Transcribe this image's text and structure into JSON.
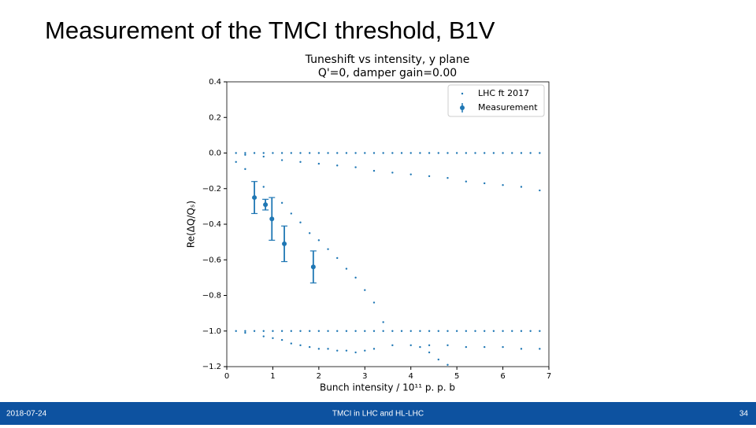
{
  "slide": {
    "title": "Measurement of the TMCI threshold, B1V",
    "date": "2018-07-24",
    "footer": "TMCI in LHC and HL-LHC",
    "page": "34"
  },
  "chart_data": {
    "type": "scatter",
    "title": "Tuneshift vs intensity, y plane",
    "subtitle": "Q'=0, damper gain=0.00",
    "x_label": "Bunch intensity / 10¹¹ p. p. b",
    "y_label": "Re(ΔQ/Qₛ)",
    "xlim": [
      0,
      7
    ],
    "xticks": [
      0,
      1,
      2,
      3,
      4,
      5,
      6,
      7
    ],
    "ylim": [
      -1.2,
      0.4
    ],
    "yticks": [
      {
        "value": -1.2,
        "label": "−1.2"
      },
      {
        "value": -1.0,
        "label": "−1.0"
      },
      {
        "value": -0.8,
        "label": "−0.8"
      },
      {
        "value": -0.6,
        "label": "−0.6"
      },
      {
        "value": -0.4,
        "label": "−0.4"
      },
      {
        "value": -0.2,
        "label": "−0.2"
      },
      {
        "value": 0,
        "label": "0.0"
      },
      0.2,
      0.4
    ],
    "legend": "upper right",
    "series": [
      {
        "name": "LHC ft 2017",
        "color": "#1f77b4",
        "x": [
          0.2,
          0.4,
          0.6,
          0.8,
          1.0,
          1.2,
          1.4,
          1.6,
          1.8,
          2.0,
          2.2,
          2.4,
          2.6,
          2.8,
          3.0,
          3.2,
          3.4,
          3.6,
          3.8,
          4.0,
          4.2,
          4.4,
          4.6,
          4.8,
          5.0,
          5.2,
          5.4,
          5.6,
          5.8,
          6.0,
          6.2,
          6.4,
          6.6,
          6.8,
          0.2,
          0.4,
          0.6,
          0.8,
          1.0,
          1.2,
          1.4,
          1.6,
          1.8,
          2.0,
          2.2,
          2.4,
          2.6,
          2.8,
          3.0,
          3.2,
          3.4,
          3.6,
          3.8,
          4.0,
          4.2,
          4.4,
          4.6,
          4.8,
          5.0,
          5.2,
          5.4,
          5.6,
          5.8,
          6.0,
          6.2,
          6.4,
          6.6,
          6.8,
          0.4,
          0.8,
          1.2,
          1.6,
          2.0,
          2.4,
          2.8,
          3.2,
          3.6,
          4.0,
          4.4,
          4.8,
          5.2,
          5.6,
          6.0,
          6.4,
          6.8,
          0.2,
          0.4,
          0.8,
          1.2,
          1.4,
          1.6,
          1.8,
          2.0,
          2.2,
          2.4,
          2.6,
          2.8,
          3.0,
          3.2,
          3.4,
          0.4,
          0.8,
          1.0,
          1.2,
          1.4,
          1.6,
          1.8,
          2.0,
          2.2,
          2.4,
          2.6,
          2.8,
          3.0,
          3.2,
          3.6,
          4.0,
          4.4,
          4.8,
          5.2,
          5.6,
          6.0,
          6.4,
          6.8,
          4.2,
          4.4,
          4.6,
          4.8
        ],
        "values": [
          0,
          0,
          0,
          0,
          0,
          0,
          0,
          0,
          0,
          0,
          0,
          0,
          0,
          0,
          0,
          0,
          0,
          0,
          0,
          0,
          0,
          0,
          0,
          0,
          0,
          0,
          0,
          0,
          0,
          0,
          0,
          0,
          0,
          0,
          -1,
          -1,
          -1,
          -1,
          -1,
          -1,
          -1,
          -1,
          -1,
          -1,
          -1,
          -1,
          -1,
          -1,
          -1,
          -1,
          -1,
          -1,
          -1,
          -1,
          -1,
          -1,
          -1,
          -1,
          -1,
          -1,
          -1,
          -1,
          -1,
          -1,
          -1,
          -1,
          -1,
          -1,
          -0.01,
          -0.02,
          -0.04,
          -0.05,
          -0.06,
          -0.07,
          -0.08,
          -0.1,
          -0.11,
          -0.12,
          -0.13,
          -0.14,
          -0.16,
          -0.17,
          -0.18,
          -0.19,
          -0.21,
          -0.05,
          -0.09,
          -0.19,
          -0.28,
          -0.34,
          -0.39,
          -0.45,
          -0.49,
          -0.54,
          -0.59,
          -0.65,
          -0.7,
          -0.77,
          -0.84,
          -0.95,
          -1.01,
          -1.03,
          -1.04,
          -1.05,
          -1.07,
          -1.08,
          -1.09,
          -1.1,
          -1.1,
          -1.11,
          -1.11,
          -1.12,
          -1.11,
          -1.1,
          -1.08,
          -1.08,
          -1.08,
          -1.08,
          -1.09,
          -1.09,
          -1.09,
          -1.1,
          -1.1,
          -1.09,
          -1.12,
          -1.16,
          -1.19
        ]
      },
      {
        "name": "Measurement",
        "color": "#1f77b4",
        "x": [
          0.6,
          0.84,
          0.98,
          1.25,
          1.88
        ],
        "values": [
          -0.25,
          -0.29,
          -0.37,
          -0.51,
          -0.64
        ],
        "errors": [
          0.09,
          0.03,
          0.12,
          0.1,
          0.09
        ]
      }
    ]
  }
}
